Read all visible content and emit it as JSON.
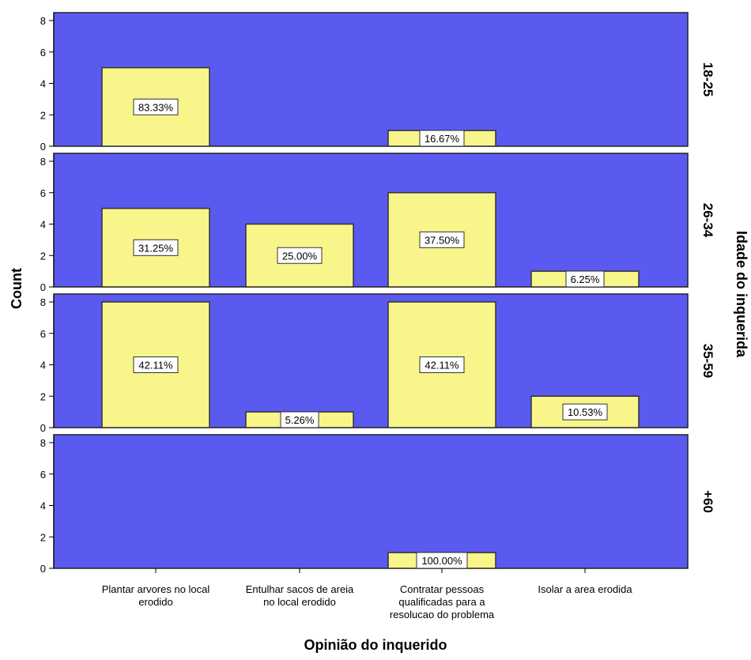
{
  "chart_data": {
    "type": "bar",
    "xlabel": "Opinião do inquerido",
    "ylabel": "Count",
    "panel_axis_label": "Idade do inquerida",
    "categories": [
      [
        "Plantar arvores no local",
        "erodido"
      ],
      [
        "Entulhar sacos de areia",
        "no local erodido"
      ],
      [
        "Contratar pessoas",
        "qualificadas para a",
        "resolucao do problema"
      ],
      [
        "Isolar a area erodida"
      ]
    ],
    "yticks": [
      "0",
      "2",
      "4",
      "6",
      "8"
    ],
    "ylim": [
      0,
      8
    ],
    "panels": [
      {
        "name": "18-25",
        "values": [
          5,
          0,
          1,
          0
        ],
        "labels": [
          "83.33%",
          "",
          "16.67%",
          ""
        ]
      },
      {
        "name": "26-34",
        "values": [
          5,
          4,
          6,
          1
        ],
        "labels": [
          "31.25%",
          "25.00%",
          "37.50%",
          "6.25%"
        ]
      },
      {
        "name": "35-59",
        "values": [
          8,
          1,
          8,
          2
        ],
        "labels": [
          "42.11%",
          "5.26%",
          "42.11%",
          "10.53%"
        ]
      },
      {
        "name": "+60",
        "values": [
          0,
          0,
          1,
          0
        ],
        "labels": [
          "",
          "",
          "100.00%",
          ""
        ]
      }
    ],
    "colors": {
      "panel_bg": "#5a5af0",
      "bar_fill": "#f8f58a",
      "bar_stroke": "#333333",
      "label_bg": "#ffffff"
    }
  }
}
